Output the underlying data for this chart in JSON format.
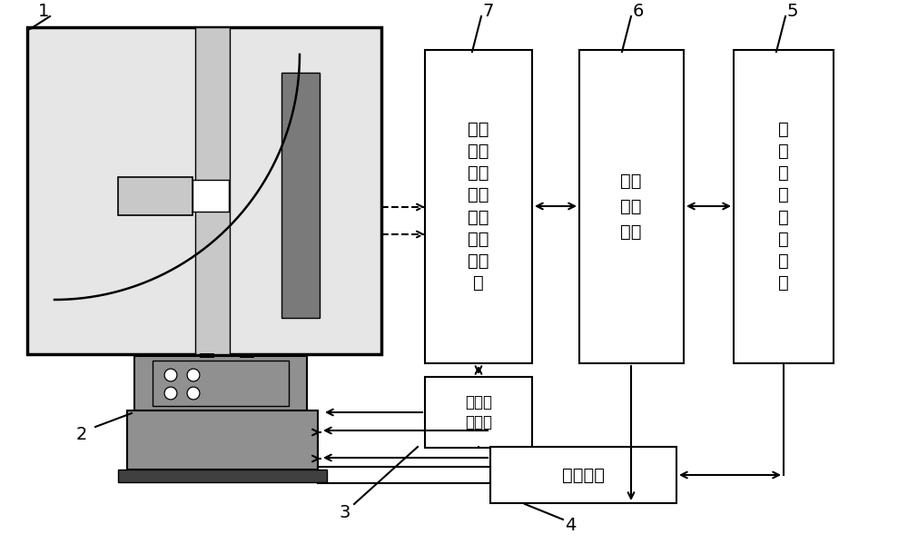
{
  "bg": "#ffffff",
  "lc": "#000000",
  "gray_dark": "#7a7a7a",
  "gray_mid": "#909090",
  "gray_light": "#c8c8c8",
  "gray_box": "#e6e6e6",
  "figw": 10.0,
  "figh": 5.99,
  "box7_text": "高光\n增益\n传感\n与图\n像信\n号处\n理电\n路",
  "box6_text": "信号\n传输\n电路",
  "box5_text": "电\n磁\n兼\n容\n防\n护\n电\n路",
  "box_rot_text": "转动控\n制电路",
  "box_pow_text": "供电电路",
  "label1": "1",
  "label2": "2",
  "label3": "3",
  "label4": "4",
  "label5": "5",
  "label6": "6",
  "label7": "7"
}
